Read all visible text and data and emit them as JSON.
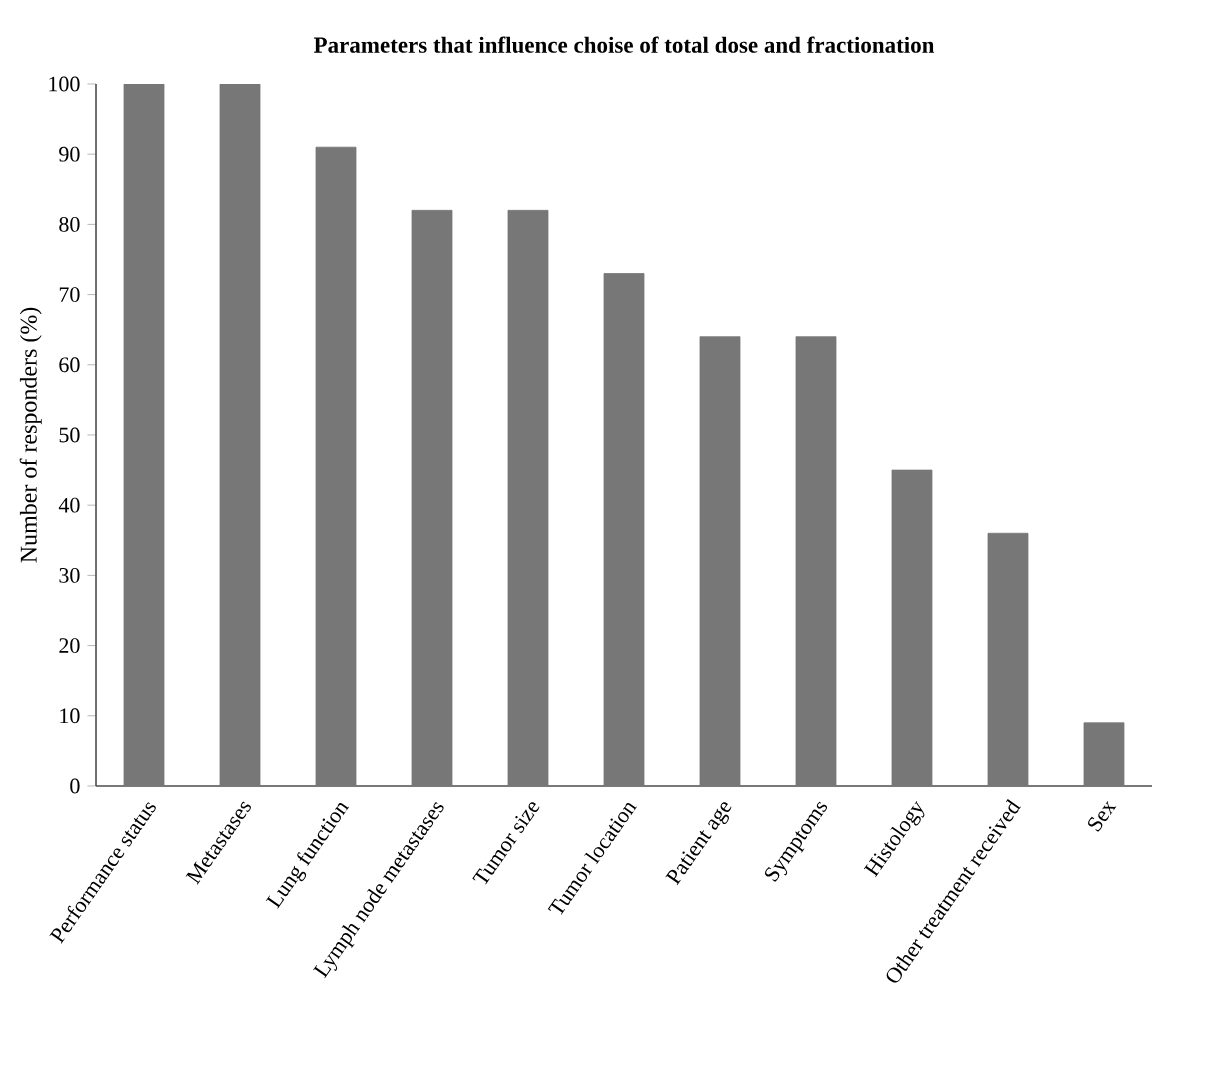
{
  "chart_data": {
    "type": "bar",
    "title": "Parameters that influence choise of total dose and fractionation",
    "ylabel": "Number of responders (%)",
    "categories": [
      "Performance status",
      "Metastases",
      "Lung function",
      "Lymph node metastases",
      "Tumor size",
      "Tumor location",
      "Patient age",
      "Symptoms",
      "Histology",
      "Other treatment received",
      "Sex"
    ],
    "values": [
      100,
      100,
      91,
      82,
      82,
      73,
      64,
      64,
      45,
      36,
      9
    ],
    "color": "#777777",
    "ylim": [
      0,
      100
    ],
    "yticks": [
      0,
      10,
      20,
      30,
      40,
      50,
      60,
      70,
      80,
      90,
      100
    ],
    "grid": false
  }
}
